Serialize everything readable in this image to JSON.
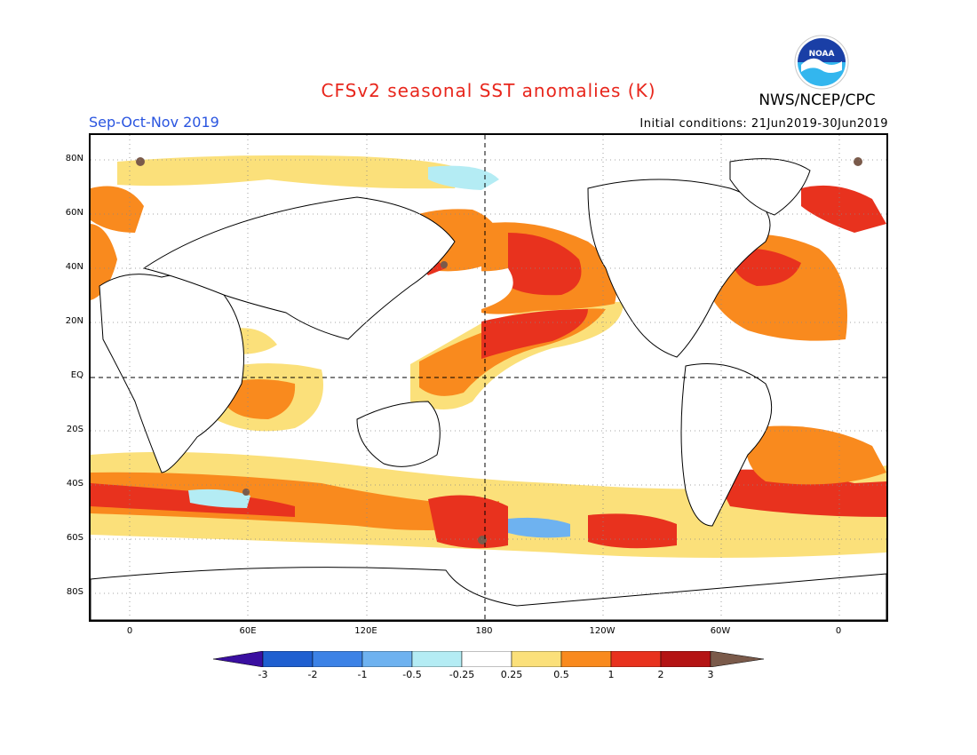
{
  "header": {
    "title": "CFSv2 seasonal SST anomalies (K)",
    "agency": "NWS/NCEP/CPC",
    "season": "Sep-Oct-Nov 2019",
    "initial_conditions": "Initial conditions: 21Jun2019-30Jun2019",
    "logo_text": "NOAA"
  },
  "map": {
    "projection": "cylindrical equidistant",
    "lon_range": [
      -20,
      380
    ],
    "lat_range": [
      -90,
      90
    ],
    "grid": "dotted",
    "dashed_reference_lines": [
      "EQ",
      "180"
    ],
    "lat_labels": [
      "80N",
      "60N",
      "40N",
      "20N",
      "EQ",
      "20S",
      "40S",
      "60S",
      "80S"
    ],
    "lon_labels": [
      "0",
      "60E",
      "120E",
      "180",
      "120W",
      "60W",
      "0"
    ]
  },
  "colorbar": {
    "unit": "K",
    "ticks": [
      "-3",
      "-2",
      "-1",
      "-0.5",
      "-0.25",
      "0.25",
      "0.5",
      "1",
      "2",
      "3"
    ],
    "colors": {
      "lt_neg3": "#3a0fa0",
      "neg3_neg2": "#1f5fd0",
      "neg2_neg1": "#3c82e6",
      "neg1_neg05": "#6eb2f0",
      "neg05_neg025": "#b4ecf4",
      "neutral": "#ffffff",
      "pos025_pos05": "#fbe07a",
      "pos05_pos1": "#f98a1e",
      "pos1_pos2": "#e8321e",
      "pos2_pos3": "#b41414",
      "gt_pos3": "#7a5a4a"
    }
  }
}
